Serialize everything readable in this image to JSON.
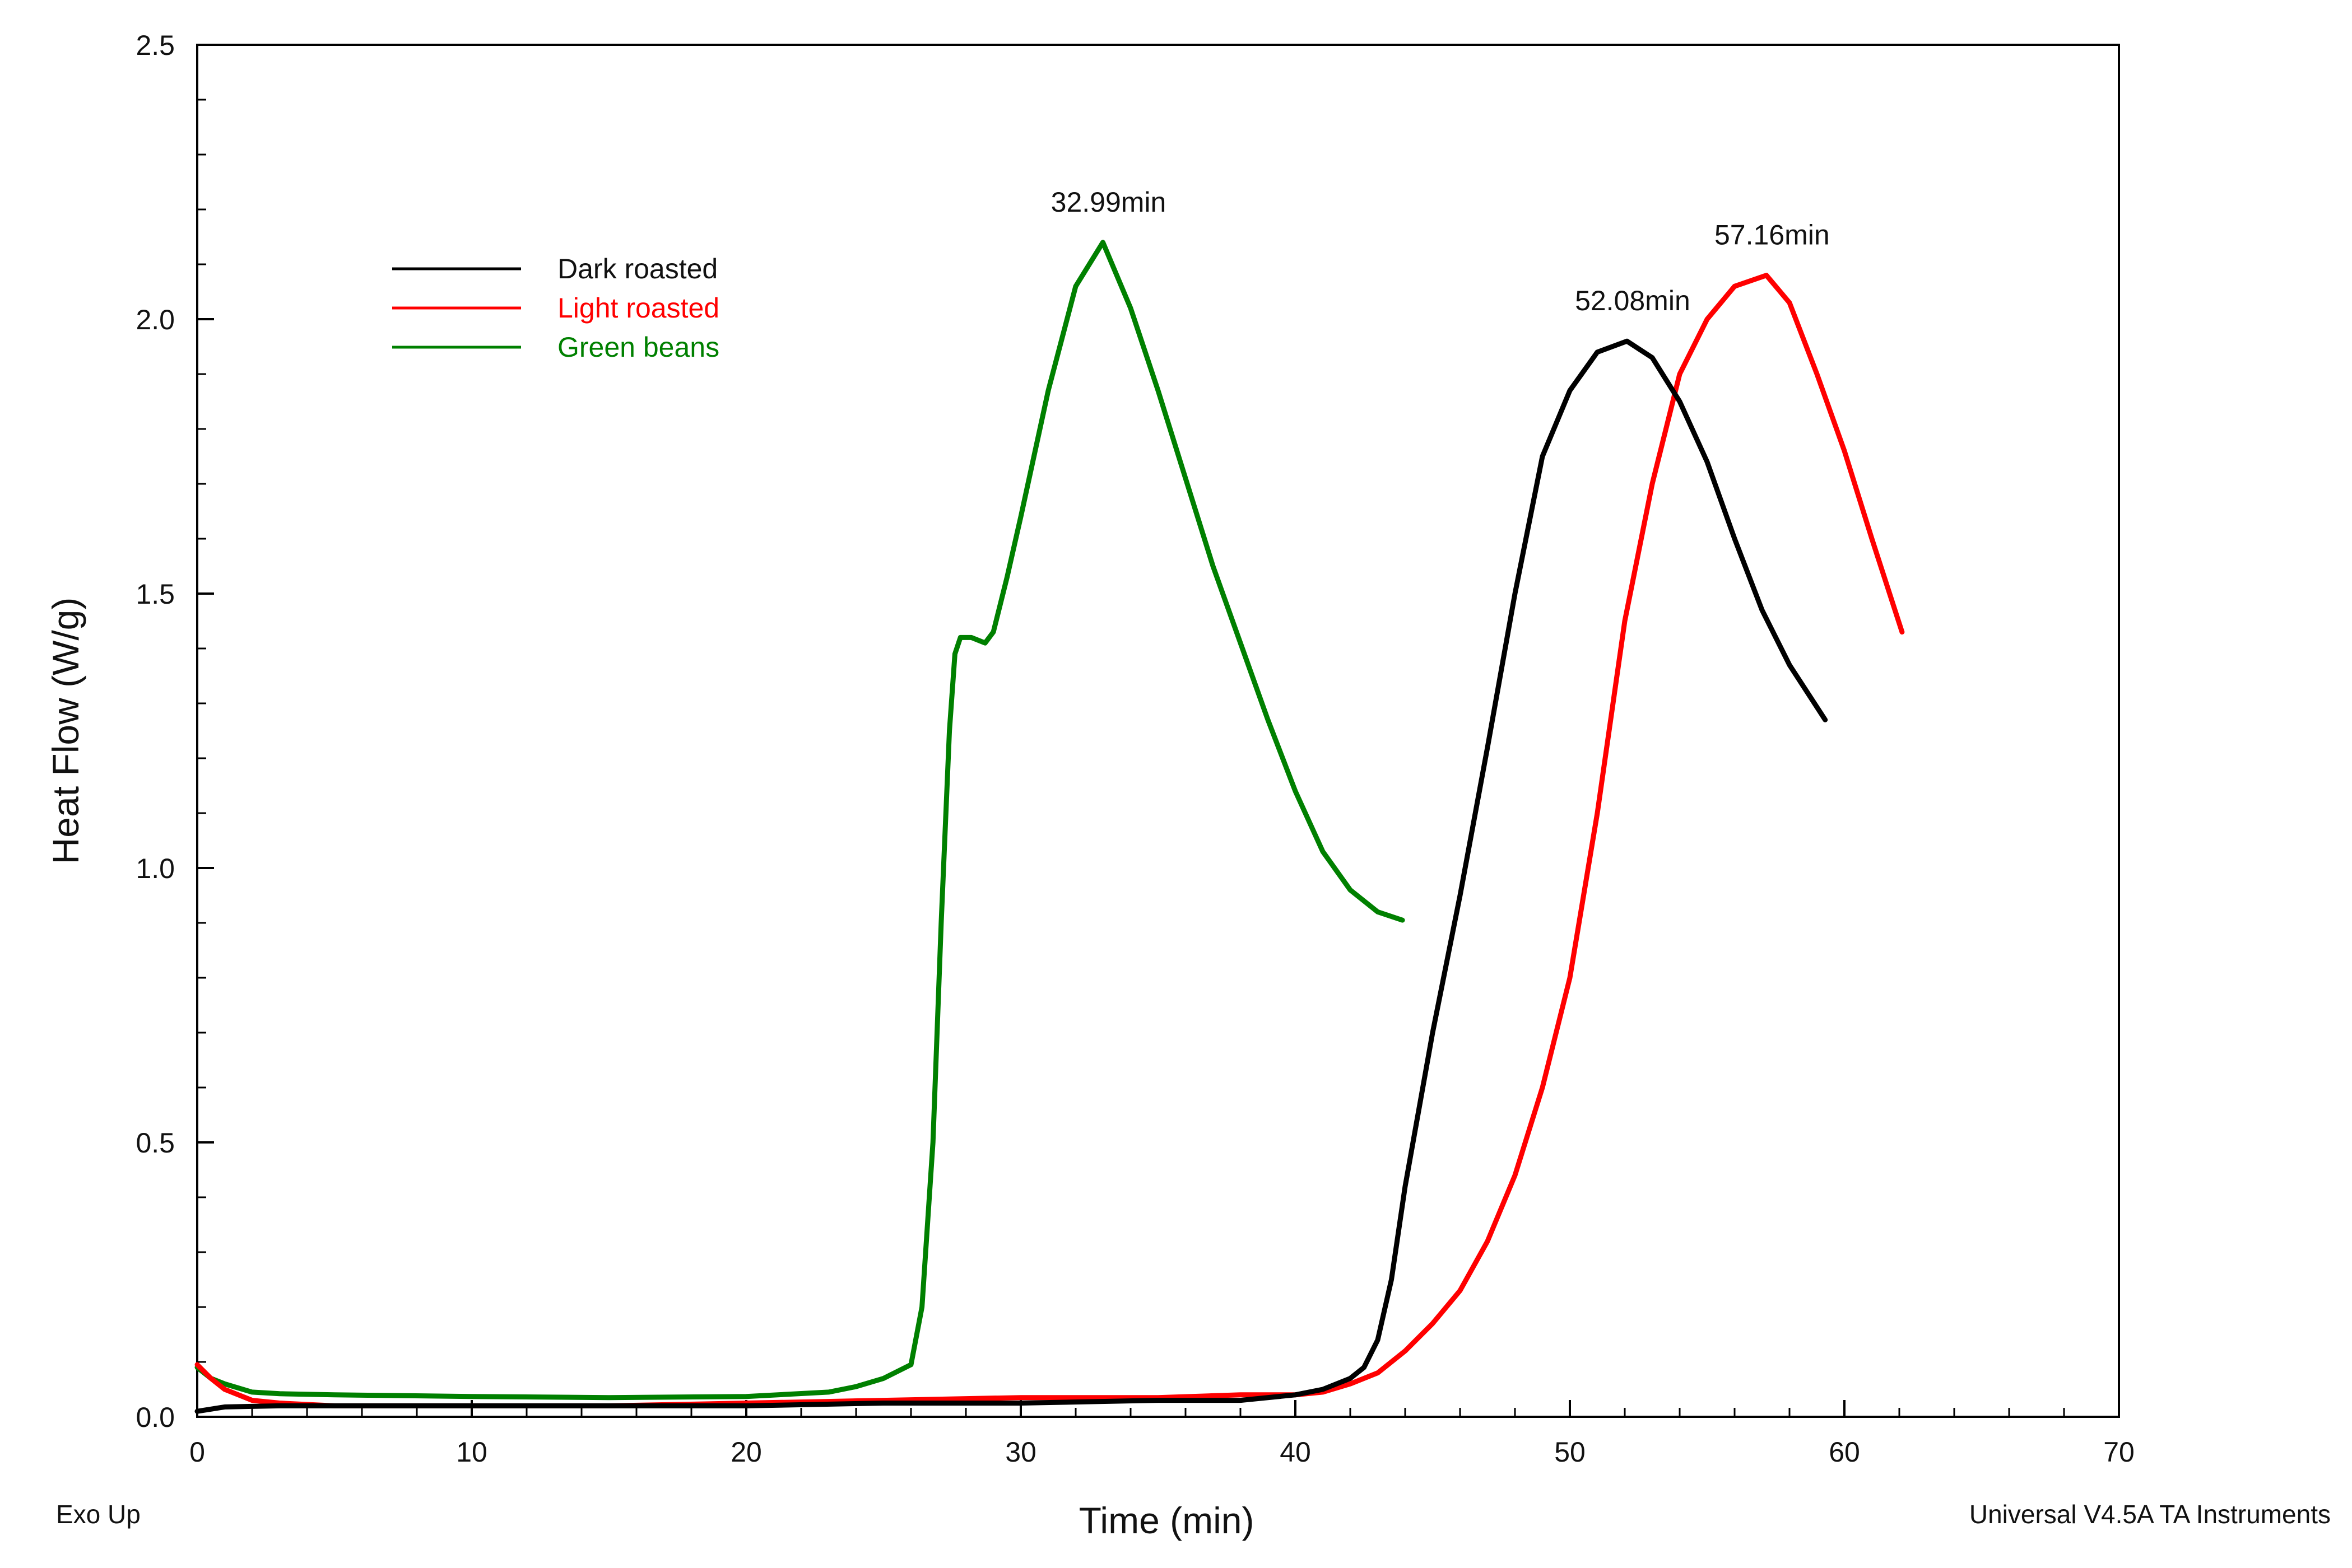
{
  "chart_data": {
    "type": "line",
    "title": "",
    "xlabel": "Time (min)",
    "ylabel": "Heat Flow (W/g)",
    "xlim": [
      0,
      70
    ],
    "ylim": [
      0,
      2.5
    ],
    "xticks": [
      0,
      10,
      20,
      30,
      40,
      50,
      60,
      70
    ],
    "yticks": [
      0.0,
      0.5,
      1.0,
      1.5,
      2.0,
      2.5
    ],
    "xtick_labels": [
      "0",
      "10",
      "20",
      "30",
      "40",
      "50",
      "60",
      "70"
    ],
    "ytick_labels": [
      "0.0",
      "0.5",
      "1.0",
      "1.5",
      "2.0",
      "2.5"
    ],
    "grid": false,
    "legend_position": "upper-left",
    "series": [
      {
        "name": "Dark roasted",
        "color": "#000000",
        "x": [
          0,
          1,
          3,
          5,
          10,
          15,
          20,
          25,
          30,
          35,
          38,
          40,
          41,
          42,
          42.5,
          43,
          43.5,
          44,
          45,
          46,
          47,
          48,
          49,
          50,
          51,
          52.08,
          53,
          54,
          55,
          56,
          57,
          58,
          59.3
        ],
        "y": [
          0.01,
          0.018,
          0.02,
          0.02,
          0.02,
          0.02,
          0.02,
          0.025,
          0.025,
          0.03,
          0.03,
          0.04,
          0.05,
          0.07,
          0.09,
          0.14,
          0.25,
          0.42,
          0.7,
          0.95,
          1.22,
          1.5,
          1.75,
          1.87,
          1.94,
          1.96,
          1.93,
          1.85,
          1.74,
          1.6,
          1.47,
          1.37,
          1.27
        ]
      },
      {
        "name": "Light roasted",
        "color": "#ff0000",
        "x": [
          0,
          0.5,
          1,
          2,
          3,
          5,
          10,
          15,
          20,
          25,
          30,
          35,
          38,
          40,
          41,
          42,
          43,
          44,
          45,
          46,
          47,
          48,
          49,
          50,
          51,
          52,
          53,
          54,
          55,
          56,
          57.16,
          58,
          59,
          60,
          61,
          62.1
        ],
        "y": [
          0.095,
          0.07,
          0.05,
          0.03,
          0.025,
          0.02,
          0.02,
          0.02,
          0.025,
          0.03,
          0.035,
          0.035,
          0.04,
          0.04,
          0.045,
          0.06,
          0.08,
          0.12,
          0.17,
          0.23,
          0.32,
          0.44,
          0.6,
          0.8,
          1.1,
          1.45,
          1.7,
          1.9,
          2.0,
          2.06,
          2.08,
          2.03,
          1.9,
          1.76,
          1.6,
          1.43
        ]
      },
      {
        "name": "Green beans",
        "color": "#008000",
        "x": [
          0,
          0.5,
          1,
          2,
          3,
          5,
          10,
          15,
          20,
          23,
          24,
          25,
          26,
          26.4,
          26.8,
          27.1,
          27.4,
          27.6,
          27.8,
          28.2,
          28.7,
          29,
          29.5,
          30,
          31,
          32,
          32.99,
          34,
          35,
          36,
          37,
          38,
          39,
          40,
          41,
          42,
          43,
          43.9
        ],
        "y": [
          0.09,
          0.07,
          0.06,
          0.045,
          0.042,
          0.04,
          0.037,
          0.035,
          0.037,
          0.045,
          0.055,
          0.07,
          0.095,
          0.2,
          0.5,
          0.9,
          1.25,
          1.39,
          1.42,
          1.42,
          1.41,
          1.43,
          1.53,
          1.64,
          1.87,
          2.06,
          2.14,
          2.02,
          1.87,
          1.71,
          1.55,
          1.41,
          1.27,
          1.14,
          1.03,
          0.96,
          0.92,
          0.905
        ]
      }
    ],
    "annotations": [
      {
        "text": "32.99min",
        "x": 32.99,
        "y": 2.14
      },
      {
        "text": "52.08min",
        "x": 52.08,
        "y": 1.96
      },
      {
        "text": "57.16min",
        "x": 57.16,
        "y": 2.08
      }
    ],
    "footer_left": "Exo Up",
    "footer_right": "Universal V4.5A TA Instruments"
  }
}
